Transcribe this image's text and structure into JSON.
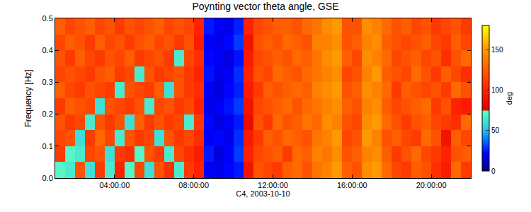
{
  "chart_data": {
    "type": "heatmap",
    "title": "Poynting vector theta angle, GSE",
    "x_label": "C4, 2003-10-10",
    "y_label": "Frequency [Hz]",
    "xlim": [
      1,
      22
    ],
    "xticks": [
      {
        "value": 4,
        "label": "04:00:00"
      },
      {
        "value": 8,
        "label": "08:00:00"
      },
      {
        "value": 12,
        "label": "12:00:00"
      },
      {
        "value": 16,
        "label": "16:00:00"
      },
      {
        "value": 20,
        "label": "20:00:00"
      }
    ],
    "ylim": [
      0,
      0.5
    ],
    "yticks": [
      {
        "value": 0,
        "label": "0.0"
      },
      0.1,
      0.2,
      0.3,
      0.4,
      0.5
    ],
    "x": [
      1.25,
      1.75,
      2.25,
      2.75,
      3.25,
      3.75,
      4.25,
      4.75,
      5.25,
      5.75,
      6.25,
      6.75,
      7.25,
      7.75,
      8.25,
      8.75,
      9.25,
      9.75,
      10.25,
      10.75,
      11.25,
      11.75,
      12.25,
      12.75,
      13.25,
      13.75,
      14.25,
      14.75,
      15.25,
      15.75,
      16.25,
      16.75,
      17.25,
      17.75,
      18.25,
      18.75,
      19.25,
      19.75,
      20.25,
      20.75,
      21.25,
      21.75
    ],
    "y": [
      0.025,
      0.075,
      0.125,
      0.175,
      0.225,
      0.275,
      0.325,
      0.375,
      0.425,
      0.475
    ],
    "z": [
      [
        70,
        65,
        120,
        60,
        110,
        65,
        100,
        70,
        115,
        60,
        120,
        105,
        65,
        110,
        100,
        20,
        18,
        22,
        25,
        90,
        120,
        115,
        110,
        125,
        130,
        120,
        135,
        140,
        150,
        125,
        120,
        145,
        150,
        130,
        115,
        110,
        125,
        120,
        105,
        95,
        130,
        110
      ],
      [
        110,
        70,
        65,
        115,
        120,
        60,
        110,
        105,
        70,
        120,
        110,
        65,
        115,
        105,
        95,
        25,
        15,
        20,
        30,
        100,
        115,
        120,
        125,
        110,
        130,
        125,
        140,
        135,
        145,
        120,
        125,
        140,
        145,
        125,
        110,
        120,
        130,
        115,
        110,
        100,
        120,
        125
      ],
      [
        115,
        120,
        60,
        110,
        130,
        115,
        65,
        120,
        110,
        115,
        60,
        120,
        110,
        115,
        105,
        20,
        22,
        18,
        28,
        95,
        110,
        125,
        120,
        130,
        125,
        120,
        135,
        140,
        150,
        115,
        120,
        150,
        140,
        120,
        125,
        115,
        110,
        130,
        120,
        90,
        125,
        115
      ],
      [
        120,
        110,
        115,
        65,
        120,
        110,
        120,
        60,
        125,
        110,
        120,
        110,
        115,
        65,
        110,
        22,
        16,
        20,
        25,
        85,
        120,
        110,
        130,
        120,
        125,
        135,
        130,
        145,
        140,
        120,
        115,
        145,
        150,
        130,
        120,
        110,
        120,
        125,
        115,
        110,
        105,
        130
      ],
      [
        110,
        125,
        120,
        115,
        60,
        120,
        115,
        110,
        120,
        65,
        115,
        120,
        110,
        115,
        100,
        18,
        20,
        24,
        30,
        90,
        115,
        120,
        125,
        130,
        120,
        130,
        135,
        140,
        145,
        125,
        120,
        140,
        145,
        125,
        115,
        120,
        125,
        130,
        110,
        120,
        100,
        95
      ],
      [
        125,
        115,
        110,
        120,
        115,
        110,
        65,
        120,
        115,
        110,
        125,
        60,
        120,
        110,
        105,
        20,
        15,
        22,
        26,
        95,
        110,
        125,
        120,
        125,
        130,
        125,
        140,
        145,
        150,
        120,
        125,
        145,
        140,
        130,
        110,
        125,
        120,
        115,
        120,
        110,
        130,
        120
      ],
      [
        115,
        120,
        115,
        110,
        120,
        125,
        110,
        115,
        65,
        120,
        110,
        115,
        120,
        110,
        100,
        24,
        18,
        20,
        28,
        100,
        120,
        115,
        130,
        125,
        120,
        130,
        135,
        140,
        145,
        115,
        120,
        140,
        150,
        125,
        120,
        115,
        130,
        120,
        110,
        125,
        115,
        105
      ],
      [
        120,
        110,
        125,
        115,
        110,
        120,
        115,
        125,
        110,
        115,
        120,
        110,
        65,
        115,
        105,
        22,
        20,
        16,
        24,
        95,
        115,
        120,
        125,
        120,
        130,
        125,
        135,
        145,
        150,
        125,
        115,
        145,
        140,
        130,
        115,
        120,
        125,
        115,
        120,
        105,
        120,
        130
      ],
      [
        115,
        125,
        120,
        110,
        125,
        115,
        120,
        110,
        120,
        125,
        115,
        120,
        110,
        120,
        95,
        20,
        18,
        22,
        30,
        90,
        120,
        125,
        120,
        130,
        125,
        120,
        140,
        140,
        145,
        120,
        125,
        140,
        145,
        125,
        120,
        115,
        120,
        125,
        115,
        110,
        125,
        115
      ],
      [
        125,
        115,
        120,
        125,
        115,
        120,
        110,
        120,
        115,
        120,
        125,
        115,
        120,
        115,
        100,
        25,
        20,
        18,
        26,
        100,
        115,
        120,
        125,
        125,
        120,
        130,
        135,
        145,
        150,
        120,
        120,
        145,
        140,
        130,
        120,
        125,
        115,
        120,
        110,
        115,
        120,
        110
      ]
    ],
    "colorbar": {
      "title": "deg",
      "range": [
        0,
        180
      ],
      "ticks": [
        0,
        50,
        100,
        150
      ]
    }
  }
}
